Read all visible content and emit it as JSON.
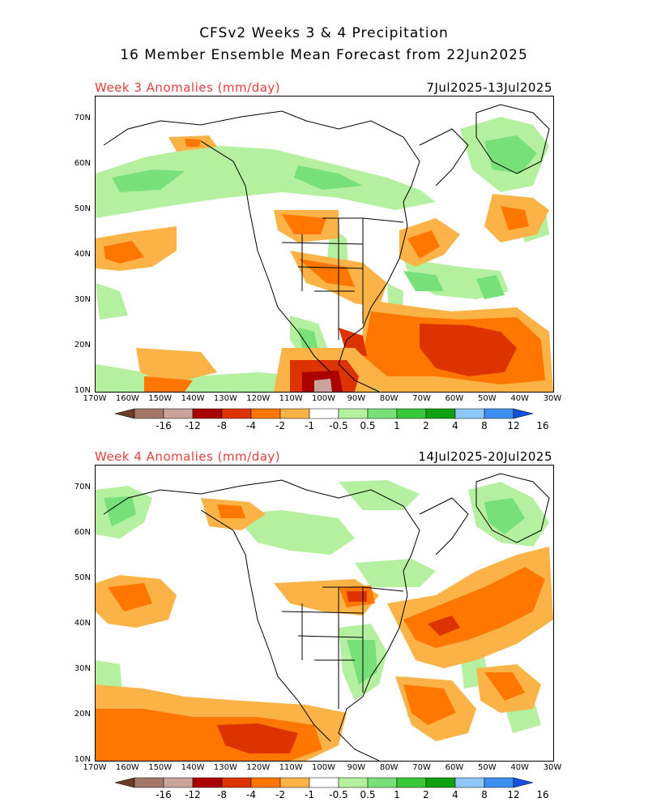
{
  "title_line1": "CFSv2 Weeks 3 & 4 Precipitation",
  "title_line2": "16 Member Ensemble Mean Forecast from 22Jun2025",
  "panels": [
    {
      "label": "Week 3 Anomalies (mm/day)",
      "dates": "7Jul2025-13Jul2025"
    },
    {
      "label": "Week 4 Anomalies (mm/day)",
      "dates": "14Jul2025-20Jul2025"
    }
  ],
  "lat_labels": [
    "70N",
    "60N",
    "50N",
    "40N",
    "30N",
    "20N",
    "10N"
  ],
  "lon_labels": [
    "170W",
    "160W",
    "150W",
    "140W",
    "130W",
    "120W",
    "110W",
    "100W",
    "90W",
    "80W",
    "70W",
    "60W",
    "50W",
    "40W",
    "30W"
  ],
  "colorbar": {
    "labels": [
      "-16",
      "-12",
      "-8",
      "-4",
      "-2",
      "-1",
      "-0.5",
      "0.5",
      "1",
      "2",
      "4",
      "8",
      "12",
      "16"
    ],
    "colors": [
      "#6b3b28",
      "#a47868",
      "#c8a49c",
      "#aa0000",
      "#dd3300",
      "#ff7700",
      "#fbb347",
      "#ffffff",
      "#b4f0a0",
      "#78e078",
      "#38c838",
      "#10a010",
      "#8ec8f8",
      "#3c90f0",
      "#1650e0"
    ]
  }
}
